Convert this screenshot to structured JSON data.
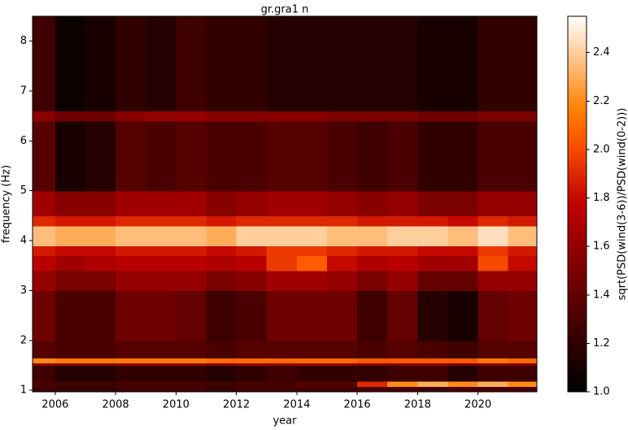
{
  "chart_data": {
    "type": "heatmap",
    "title": "gr.gra1 n",
    "x_label": "year",
    "y_label": "frequency (Hz)",
    "xlim": [
      2005.25,
      2021.95
    ],
    "xticks": [
      2006,
      2008,
      2010,
      2012,
      2014,
      2016,
      2018,
      2020
    ],
    "ylim": [
      0.97,
      8.5
    ],
    "yticks": [
      1,
      2,
      3,
      4,
      5,
      6,
      7,
      8
    ],
    "x_edges": [
      2005.25,
      2006,
      2007,
      2008,
      2009,
      2010,
      2011,
      2012,
      2013,
      2014,
      2015,
      2016,
      2017,
      2018,
      2019,
      2020,
      2021,
      2021.95
    ],
    "y_edges": [
      0.97,
      1.08,
      1.18,
      1.5,
      1.55,
      1.65,
      2,
      3,
      3.4,
      3.7,
      3.9,
      4.3,
      4.5,
      5,
      6.4,
      6.6,
      8.5
    ],
    "values": [
      [
        1.25,
        1.2,
        1.2,
        1.25,
        1.25,
        1.25,
        1.2,
        1.25,
        1.25,
        1.25,
        1.25,
        1.3,
        1.3,
        1.25,
        1.3,
        1.3,
        1.3
      ],
      [
        1.3,
        1.25,
        1.25,
        1.3,
        1.3,
        1.3,
        1.25,
        1.3,
        1.3,
        1.35,
        1.35,
        1.9,
        2.2,
        2.3,
        2.2,
        2.3,
        2.2
      ],
      [
        1.25,
        1.15,
        1.15,
        1.2,
        1.2,
        1.2,
        1.15,
        1.2,
        1.25,
        1.2,
        1.2,
        1.2,
        1.25,
        1.25,
        1.15,
        1.25,
        1.25
      ],
      [
        1.6,
        1.55,
        1.55,
        1.6,
        1.6,
        1.6,
        1.55,
        1.6,
        1.6,
        1.6,
        1.6,
        1.55,
        1.55,
        1.55,
        1.5,
        1.55,
        1.55
      ],
      [
        2.2,
        2.15,
        2.15,
        2.15,
        2.15,
        2.15,
        2.1,
        2.1,
        2.1,
        2.1,
        2.1,
        2.05,
        2.05,
        2.05,
        2.05,
        2.15,
        2.1
      ],
      [
        1.35,
        1.3,
        1.3,
        1.35,
        1.35,
        1.35,
        1.3,
        1.35,
        1.35,
        1.35,
        1.35,
        1.3,
        1.35,
        1.3,
        1.25,
        1.35,
        1.35
      ],
      [
        1.45,
        1.3,
        1.3,
        1.45,
        1.45,
        1.4,
        1.25,
        1.3,
        1.45,
        1.45,
        1.45,
        1.25,
        1.4,
        1.15,
        1.1,
        1.4,
        1.45
      ],
      [
        1.6,
        1.5,
        1.5,
        1.6,
        1.6,
        1.6,
        1.5,
        1.55,
        1.65,
        1.65,
        1.6,
        1.5,
        1.6,
        1.4,
        1.4,
        1.6,
        1.6
      ],
      [
        1.75,
        1.65,
        1.7,
        1.75,
        1.75,
        1.75,
        1.7,
        1.75,
        1.95,
        2.05,
        1.8,
        1.7,
        1.75,
        1.65,
        1.65,
        2.0,
        1.8
      ],
      [
        1.85,
        1.8,
        1.8,
        1.85,
        1.85,
        1.85,
        1.8,
        1.85,
        1.95,
        1.95,
        1.9,
        1.85,
        1.85,
        1.8,
        1.8,
        1.95,
        1.85
      ],
      [
        2.35,
        2.3,
        2.3,
        2.35,
        2.35,
        2.35,
        2.3,
        2.4,
        2.4,
        2.4,
        2.35,
        2.35,
        2.4,
        2.4,
        2.35,
        2.45,
        2.35
      ],
      [
        1.9,
        1.85,
        1.85,
        1.9,
        1.9,
        1.9,
        1.85,
        1.9,
        1.9,
        1.9,
        1.9,
        1.85,
        1.85,
        1.85,
        1.8,
        1.9,
        1.85
      ],
      [
        1.65,
        1.55,
        1.55,
        1.65,
        1.65,
        1.65,
        1.55,
        1.6,
        1.65,
        1.65,
        1.6,
        1.55,
        1.6,
        1.5,
        1.5,
        1.6,
        1.6
      ],
      [
        1.35,
        1.1,
        1.15,
        1.35,
        1.3,
        1.35,
        1.3,
        1.3,
        1.35,
        1.35,
        1.3,
        1.25,
        1.3,
        1.2,
        1.2,
        1.3,
        1.3
      ],
      [
        1.55,
        1.45,
        1.45,
        1.55,
        1.6,
        1.6,
        1.55,
        1.55,
        1.55,
        1.55,
        1.5,
        1.5,
        1.5,
        1.45,
        1.45,
        1.5,
        1.5
      ],
      [
        1.25,
        1.05,
        1.1,
        1.2,
        1.15,
        1.25,
        1.2,
        1.2,
        1.15,
        1.15,
        1.15,
        1.15,
        1.15,
        1.1,
        1.1,
        1.2,
        1.2
      ]
    ],
    "colormap": "gist_heat",
    "colorbar": {
      "label": "sqrt(PSD(wind(3-6))/PSD(wind(0-2)))",
      "lim": [
        1.0,
        2.55
      ],
      "ticks": [
        {
          "value": 1.0,
          "label": "1.0"
        },
        1.2,
        1.4,
        1.6,
        1.8,
        {
          "value": 2.0,
          "label": "2.0"
        },
        2.2,
        2.4
      ]
    }
  }
}
